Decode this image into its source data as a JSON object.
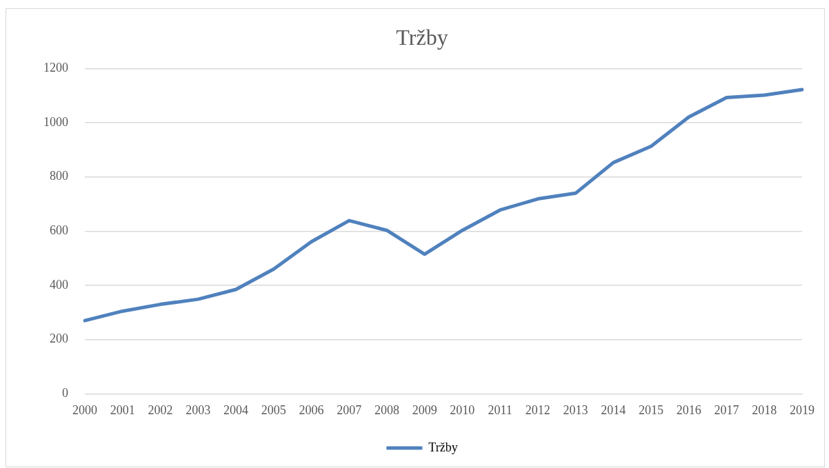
{
  "chart_data": {
    "type": "line",
    "title": "Tržby",
    "categories": [
      "2000",
      "2001",
      "2002",
      "2003",
      "2004",
      "2005",
      "2006",
      "2007",
      "2008",
      "2009",
      "2010",
      "2011",
      "2012",
      "2013",
      "2014",
      "2015",
      "2016",
      "2017",
      "2018",
      "2019"
    ],
    "series": [
      {
        "name": "Tržby",
        "color": "#4f81bd",
        "values": [
          270,
          305,
          330,
          349,
          385,
          460,
          561,
          639,
          603,
          515,
          603,
          678,
          719,
          740,
          853,
          913,
          1021,
          1093,
          1102,
          1122
        ]
      }
    ],
    "ylim": [
      0,
      1200
    ],
    "yticks": [
      0,
      200,
      400,
      600,
      800,
      1000,
      1200
    ],
    "grid": "y",
    "legend": "bottom",
    "marker": "none",
    "line_style": "solid"
  }
}
